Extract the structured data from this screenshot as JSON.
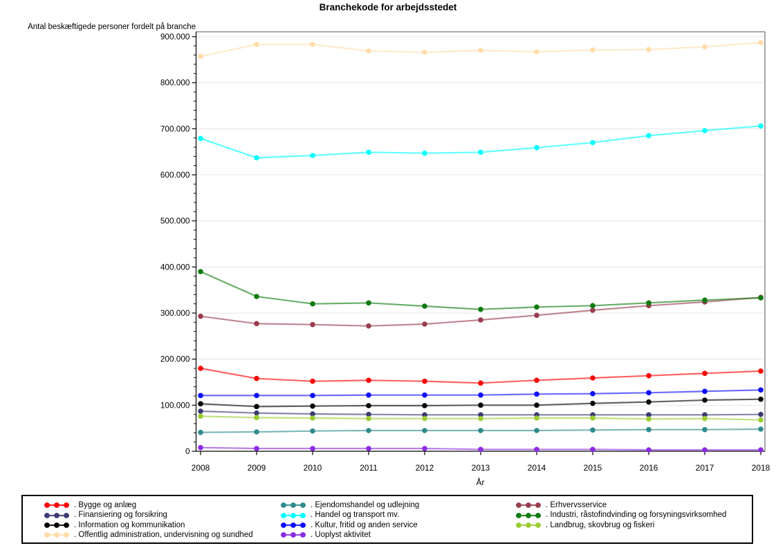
{
  "title": "Branchekode for arbejdsstedet",
  "y_axis_label": "Antal beskæftigede personer fordelt på branche",
  "x_axis_label": "År",
  "chart_data": {
    "type": "line",
    "title": "Branchekode for arbejdsstedet",
    "xlabel": "År",
    "ylabel": "Antal beskæftigede personer fordelt på branche",
    "x": [
      2008,
      2009,
      2010,
      2011,
      2012,
      2013,
      2014,
      2015,
      2016,
      2017,
      2018
    ],
    "ylim": [
      0,
      900000
    ],
    "y_major_tick_step": 100000,
    "y_minor_tick_step": 20000,
    "y_tick_labels": [
      "0",
      "100.000",
      "200.000",
      "300.000",
      "400.000",
      "500.000",
      "600.000",
      "700.000",
      "800.000",
      "900.000"
    ],
    "grid": true,
    "legend_position": "bottom-box-3-columns",
    "marker": "filled-circle",
    "series": [
      {
        "name": "Bygge og anlæg",
        "label": ". Bygge og anlæg",
        "color": "#FF0000",
        "values": [
          180000,
          158000,
          152000,
          154000,
          152000,
          148000,
          154000,
          159000,
          164000,
          169000,
          174000
        ]
      },
      {
        "name": "Ejendomshandel og udlejning",
        "label": ". Ejendomshandel og udlejning",
        "color": "#2E8B8B",
        "values": [
          41000,
          42000,
          44000,
          45000,
          45000,
          45000,
          45000,
          46000,
          47000,
          47000,
          48000
        ]
      },
      {
        "name": "Erhvervsservice",
        "label": ". Erhvervsservice",
        "color": "#973D4F",
        "values": [
          293000,
          277000,
          275000,
          272000,
          276000,
          285000,
          295000,
          306000,
          316000,
          324000,
          334000
        ]
      },
      {
        "name": "Finansiering og forsikring",
        "label": ". Finansiering og forsikring",
        "color": "#3B3B72",
        "values": [
          87000,
          83000,
          81000,
          80000,
          79000,
          79000,
          79000,
          79000,
          79000,
          79000,
          80000
        ]
      },
      {
        "name": "Handel og transport mv.",
        "label": ". Handel og transport mv.",
        "color": "#00FFFF",
        "values": [
          679000,
          637000,
          642000,
          649000,
          647000,
          649000,
          659000,
          670000,
          685000,
          696000,
          706000
        ]
      },
      {
        "name": "Industri, råstofindvinding og forsyningsvirksomhed",
        "label": ". Industri, råstofindvinding og forsyningsvirksomhed",
        "color": "#0E7A0E",
        "values": [
          390000,
          336000,
          320000,
          322000,
          315000,
          308000,
          313000,
          316000,
          322000,
          328000,
          333000
        ]
      },
      {
        "name": "Information og kommunikation",
        "label": ". Information og kommunikation",
        "color": "#000000",
        "values": [
          103000,
          97000,
          98000,
          99000,
          99000,
          100000,
          100000,
          104000,
          107000,
          111000,
          113000
        ]
      },
      {
        "name": "Kultur, fritid og anden service",
        "label": ". Kultur, fritid og anden service",
        "color": "#0D0DFF",
        "values": [
          121000,
          121000,
          121000,
          122000,
          122000,
          122000,
          124000,
          125000,
          127000,
          130000,
          133000
        ]
      },
      {
        "name": "Landbrug, skovbrug og fiskeri",
        "label": ". Landbrug, skovbrug og fiskeri",
        "color": "#9ACD32",
        "values": [
          76000,
          73000,
          72000,
          71000,
          71000,
          71000,
          72000,
          72000,
          70000,
          71000,
          68000
        ]
      },
      {
        "name": "Offentlig administration, undervisning og sundhed",
        "label": ". Offentlig administration, undervisning og sundhed",
        "color": "#FFDCA8",
        "values": [
          857000,
          883000,
          883000,
          869000,
          866000,
          870000,
          867000,
          871000,
          872000,
          878000,
          887000
        ]
      },
      {
        "name": "Uoplyst aktivitet",
        "label": ". Uoplyst aktivitet",
        "color": "#8A2BE2",
        "values": [
          8000,
          6000,
          6000,
          6000,
          6000,
          4000,
          4000,
          4000,
          3000,
          3000,
          3000
        ]
      }
    ],
    "style_colors": {
      "gridline": "#E4E4E4",
      "frame": "#8C8C8C",
      "axis": "#000000"
    }
  }
}
